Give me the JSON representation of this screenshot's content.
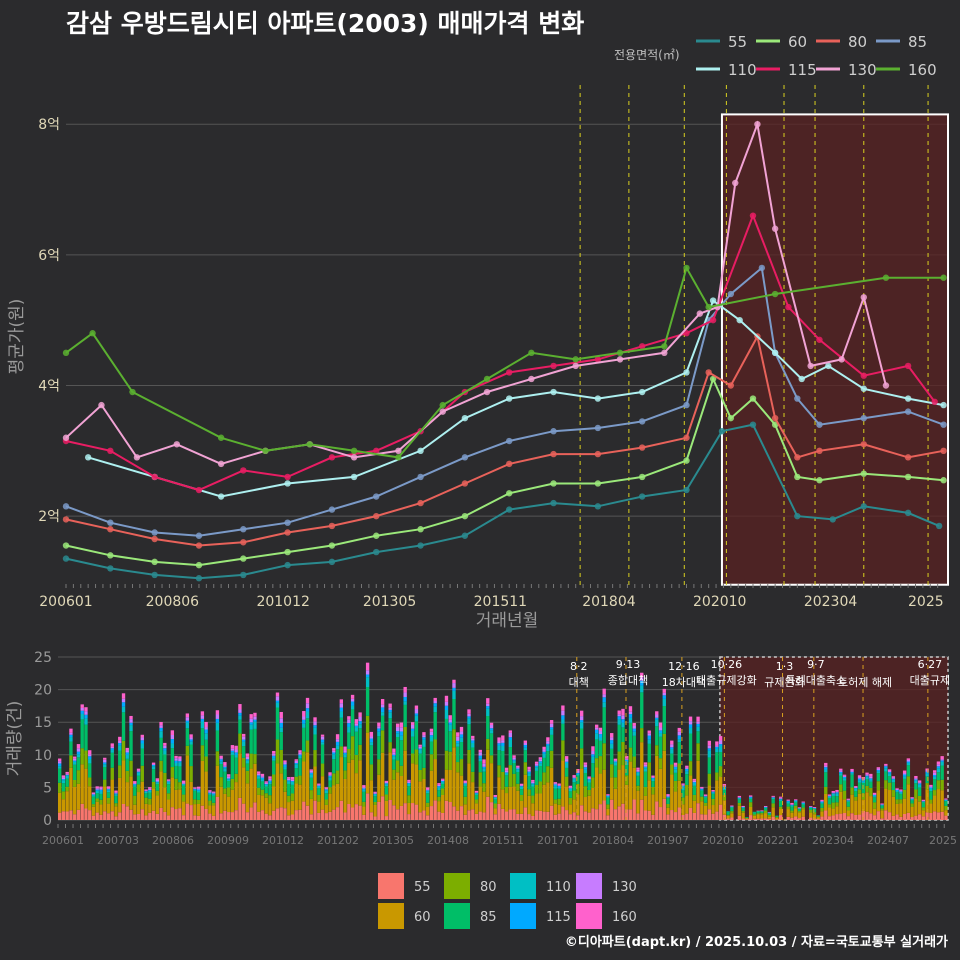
{
  "title": "감삼 우방드림시티 아파트(2003) 매매가격 변화",
  "credit": "©디아파트(dapt.kr) / 2025.10.03 / 자료=국토교통부 실거래가",
  "chart_data": [
    {
      "type": "line",
      "title": "감삼 우방드림시티 아파트(2003) 매매가격 변화",
      "xlabel": "거래년월",
      "ylabel": "평균가(원)",
      "ylim": [
        0.9,
        8.6
      ],
      "yticks": [
        {
          "v": 2,
          "label": "2억"
        },
        {
          "v": 4,
          "label": "4억"
        },
        {
          "v": 6,
          "label": "6억"
        },
        {
          "v": 8,
          "label": "8억"
        }
      ],
      "xticks": [
        "200601",
        "200806",
        "201012",
        "201305",
        "201511",
        "201804",
        "202010",
        "202304",
        "2025"
      ],
      "legend_title": "전용면적(㎡)",
      "highlight_box": {
        "from": 2020.8,
        "to": 2025.9,
        "ymin": 0.95,
        "ymax": 8.15
      },
      "policy_lines": [
        2017.6,
        2018.7,
        2019.95,
        2020.9,
        2022.2,
        2022.9,
        2024.0,
        2025.45
      ],
      "series": [
        {
          "name": "55",
          "color": "#2a8a8f",
          "x": [
            2006.0,
            2007.0,
            2008.0,
            2009.0,
            2010.0,
            2011.0,
            2012.0,
            2013.0,
            2014.0,
            2015.0,
            2016.0,
            2017.0,
            2018.0,
            2019.0,
            2020.0,
            2020.8,
            2021.5,
            2022.5,
            2023.3,
            2024.0,
            2025.0,
            2025.7
          ],
          "y": [
            1.35,
            1.2,
            1.1,
            1.05,
            1.1,
            1.25,
            1.3,
            1.45,
            1.55,
            1.7,
            2.1,
            2.2,
            2.15,
            2.3,
            2.4,
            3.3,
            3.4,
            2.0,
            1.95,
            2.15,
            2.05,
            1.85
          ]
        },
        {
          "name": "60",
          "color": "#9be87a",
          "x": [
            2006.0,
            2007.0,
            2008.0,
            2009.0,
            2010.0,
            2011.0,
            2012.0,
            2013.0,
            2014.0,
            2015.0,
            2016.0,
            2017.0,
            2018.0,
            2019.0,
            2020.0,
            2020.6,
            2021.0,
            2021.5,
            2022.0,
            2022.5,
            2023.0,
            2024.0,
            2025.0,
            2025.8
          ],
          "y": [
            1.55,
            1.4,
            1.3,
            1.25,
            1.35,
            1.45,
            1.55,
            1.7,
            1.8,
            2.0,
            2.35,
            2.5,
            2.5,
            2.6,
            2.85,
            4.1,
            3.5,
            3.8,
            3.4,
            2.6,
            2.55,
            2.65,
            2.6,
            2.55
          ]
        },
        {
          "name": "80",
          "color": "#e8625a",
          "x": [
            2006.0,
            2007.0,
            2008.0,
            2009.0,
            2010.0,
            2011.0,
            2012.0,
            2013.0,
            2014.0,
            2015.0,
            2016.0,
            2017.0,
            2018.0,
            2019.0,
            2020.0,
            2020.5,
            2021.0,
            2021.6,
            2022.0,
            2022.5,
            2023.0,
            2024.0,
            2025.0,
            2025.8
          ],
          "y": [
            1.95,
            1.8,
            1.65,
            1.55,
            1.6,
            1.75,
            1.85,
            2.0,
            2.2,
            2.5,
            2.8,
            2.95,
            2.95,
            3.05,
            3.2,
            4.2,
            4.0,
            4.75,
            3.5,
            2.9,
            3.0,
            3.1,
            2.9,
            3.0
          ]
        },
        {
          "name": "85",
          "color": "#7b9ac8",
          "x": [
            2006.0,
            2007.0,
            2008.0,
            2009.0,
            2010.0,
            2011.0,
            2012.0,
            2013.0,
            2014.0,
            2015.0,
            2016.0,
            2017.0,
            2018.0,
            2019.0,
            2020.0,
            2020.5,
            2021.0,
            2021.7,
            2022.0,
            2022.5,
            2023.0,
            2024.0,
            2025.0,
            2025.8
          ],
          "y": [
            2.15,
            1.9,
            1.75,
            1.7,
            1.8,
            1.9,
            2.1,
            2.3,
            2.6,
            2.9,
            3.15,
            3.3,
            3.35,
            3.45,
            3.7,
            5.0,
            5.4,
            5.8,
            4.5,
            3.8,
            3.4,
            3.5,
            3.6,
            3.4
          ]
        },
        {
          "name": "110",
          "color": "#aef0f0",
          "x": [
            2006.5,
            2008.0,
            2009.5,
            2011.0,
            2012.5,
            2014.0,
            2015.0,
            2016.0,
            2017.0,
            2018.0,
            2019.0,
            2020.0,
            2020.6,
            2021.2,
            2022.0,
            2022.6,
            2023.2,
            2024.0,
            2025.0,
            2025.8
          ],
          "y": [
            2.9,
            2.6,
            2.3,
            2.5,
            2.6,
            3.0,
            3.5,
            3.8,
            3.9,
            3.8,
            3.9,
            4.2,
            5.3,
            5.0,
            4.5,
            4.1,
            4.3,
            3.95,
            3.8,
            3.7
          ]
        },
        {
          "name": "115",
          "color": "#e81d63",
          "x": [
            2006.0,
            2007.0,
            2008.0,
            2009.0,
            2010.0,
            2011.0,
            2012.0,
            2013.0,
            2014.0,
            2015.0,
            2016.0,
            2017.0,
            2018.0,
            2019.0,
            2020.0,
            2020.6,
            2021.5,
            2022.3,
            2023.0,
            2024.0,
            2025.0,
            2025.6
          ],
          "y": [
            3.15,
            3.0,
            2.6,
            2.4,
            2.7,
            2.6,
            2.9,
            3.0,
            3.3,
            3.9,
            4.2,
            4.3,
            4.4,
            4.6,
            4.8,
            5.0,
            6.6,
            5.2,
            4.7,
            4.15,
            4.3,
            3.75
          ]
        },
        {
          "name": "130",
          "color": "#f1a3d4",
          "x": [
            2006.0,
            2006.8,
            2007.6,
            2008.5,
            2009.5,
            2010.5,
            2011.5,
            2012.5,
            2013.5,
            2014.5,
            2015.5,
            2016.5,
            2017.5,
            2018.5,
            2019.5,
            2020.3,
            2020.7,
            2021.1,
            2021.6,
            2022.0,
            2022.8,
            2023.5,
            2024.0,
            2024.5
          ],
          "y": [
            3.2,
            3.7,
            2.9,
            3.1,
            2.8,
            3.0,
            3.1,
            2.9,
            3.0,
            3.6,
            3.9,
            4.1,
            4.3,
            4.4,
            4.5,
            5.1,
            5.2,
            7.1,
            8.0,
            6.4,
            4.3,
            4.4,
            5.35,
            4.0
          ]
        },
        {
          "name": "160",
          "color": "#5bb030",
          "x": [
            2006.0,
            2006.6,
            2007.5,
            2009.5,
            2010.5,
            2011.5,
            2012.5,
            2013.5,
            2014.5,
            2015.5,
            2016.5,
            2017.5,
            2018.5,
            2019.5,
            2020.0,
            2020.5,
            2022.0,
            2024.5,
            2025.8
          ],
          "y": [
            4.5,
            4.8,
            3.9,
            3.2,
            3.0,
            3.1,
            3.0,
            2.9,
            3.7,
            4.1,
            4.5,
            4.4,
            4.5,
            4.6,
            5.8,
            5.2,
            5.4,
            5.65,
            5.65
          ]
        }
      ]
    },
    {
      "type": "bar",
      "title": "",
      "xlabel": "",
      "ylabel": "거래량(건)",
      "ylim": [
        0,
        25
      ],
      "yticks": [
        0,
        5,
        10,
        15,
        20,
        25
      ],
      "xticks": [
        "200601",
        "200703",
        "200806",
        "200909",
        "201012",
        "201202",
        "201305",
        "201408",
        "201511",
        "201701",
        "201804",
        "201907",
        "202010",
        "202201",
        "202304",
        "202407",
        "2025"
      ],
      "months": 237,
      "start": 2006.0,
      "legend": [
        {
          "name": "55",
          "color": "#f8766d"
        },
        {
          "name": "60",
          "color": "#c99800"
        },
        {
          "name": "80",
          "color": "#7cae00"
        },
        {
          "name": "85",
          "color": "#00be67"
        },
        {
          "name": "110",
          "color": "#00bfc4"
        },
        {
          "name": "115",
          "color": "#00a9ff"
        },
        {
          "name": "130",
          "color": "#c77cff"
        },
        {
          "name": "160",
          "color": "#ff61cc"
        }
      ],
      "annotations": [
        {
          "x": 2017.6,
          "date": "8·2",
          "label": "대책"
        },
        {
          "x": 2018.7,
          "date": "9·13",
          "label": "종합대책"
        },
        {
          "x": 2019.95,
          "date": "12·16",
          "label": "18차대책"
        },
        {
          "x": 2020.9,
          "date": "10·26",
          "label": "대출규제강화"
        },
        {
          "x": 2022.2,
          "date": "1·3",
          "label": "규제완화"
        },
        {
          "x": 2022.9,
          "date": "9·7",
          "label": "특례대출축소"
        },
        {
          "x": 2024.0,
          "date": "",
          "label": "토허제 해제"
        },
        {
          "x": 2025.45,
          "date": "6·27",
          "label": "대출규제"
        }
      ]
    }
  ]
}
